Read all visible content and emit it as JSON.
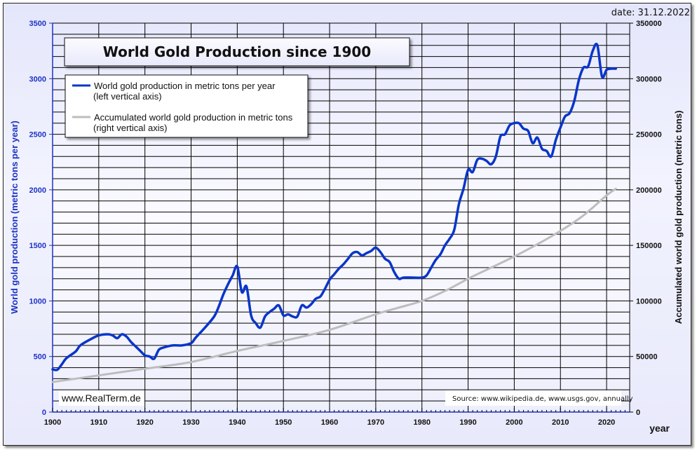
{
  "chart_data": {
    "type": "line",
    "title": "World Gold Production since 1900",
    "date_label": "date: 31.12.2022",
    "xlabel": "year",
    "ylabel_left": "World gold production  (metric tons per year)",
    "ylabel_right": "Accumulated world gold production (metric tons)",
    "xlim": [
      1900,
      2025
    ],
    "ylim_left": [
      0,
      3500
    ],
    "ylim_right": [
      0,
      350000
    ],
    "x_ticks": [
      "1900",
      "1910",
      "1920",
      "1930",
      "1940",
      "1950",
      "1960",
      "1970",
      "1980",
      "1990",
      "2000",
      "2010",
      "2020"
    ],
    "y_ticks_left": [
      "0",
      "500",
      "1000",
      "1500",
      "2000",
      "2500",
      "3000",
      "3500"
    ],
    "y_ticks_right": [
      "0",
      "50000",
      "100000",
      "150000",
      "200000",
      "250000",
      "300000",
      "350000"
    ],
    "grid": true,
    "legend_position": "top-left",
    "legend": [
      {
        "line1": "World gold production in metric tons per year",
        "line2": "(left vertical axis)",
        "color": "#0a35c8"
      },
      {
        "line1": "Accumulated world gold production in metric tons",
        "line2": "(right vertical axis)",
        "color": "#bdbdbd"
      }
    ],
    "series": [
      {
        "name": "World gold production in metric tons per year",
        "axis": "left",
        "color": "#0a35c8",
        "x": [
          1900,
          1901,
          1902,
          1903,
          1905,
          1906,
          1908,
          1910,
          1912,
          1913,
          1914,
          1915,
          1916,
          1917,
          1918,
          1919,
          1920,
          1921,
          1922,
          1923,
          1924,
          1926,
          1928,
          1930,
          1931,
          1933,
          1935,
          1936,
          1937,
          1938,
          1939,
          1940,
          1941,
          1942,
          1943,
          1944,
          1945,
          1946,
          1947,
          1948,
          1949,
          1950,
          1951,
          1952,
          1953,
          1954,
          1955,
          1956,
          1957,
          1958,
          1959,
          1960,
          1961,
          1962,
          1963,
          1964,
          1965,
          1966,
          1967,
          1968,
          1969,
          1970,
          1971,
          1972,
          1973,
          1974,
          1975,
          1976,
          1978,
          1980,
          1981,
          1982,
          1983,
          1984,
          1985,
          1986,
          1987,
          1988,
          1989,
          1990,
          1991,
          1992,
          1993,
          1994,
          1995,
          1996,
          1997,
          1998,
          1999,
          2000,
          2001,
          2002,
          2003,
          2004,
          2005,
          2006,
          2007,
          2008,
          2009,
          2010,
          2011,
          2012,
          2013,
          2014,
          2015,
          2016,
          2017,
          2018,
          2019,
          2020,
          2021,
          2022
        ],
        "values": [
          385,
          380,
          430,
          485,
          545,
          600,
          650,
          690,
          700,
          690,
          665,
          700,
          680,
          630,
          590,
          550,
          510,
          500,
          480,
          560,
          580,
          600,
          600,
          620,
          670,
          760,
          860,
          950,
          1060,
          1150,
          1230,
          1310,
          1080,
          1130,
          870,
          800,
          760,
          860,
          900,
          930,
          960,
          870,
          880,
          860,
          860,
          960,
          940,
          970,
          1020,
          1040,
          1110,
          1190,
          1240,
          1290,
          1330,
          1380,
          1430,
          1440,
          1410,
          1430,
          1450,
          1480,
          1440,
          1380,
          1350,
          1260,
          1200,
          1210,
          1210,
          1210,
          1230,
          1300,
          1370,
          1420,
          1500,
          1560,
          1640,
          1870,
          2010,
          2180,
          2160,
          2270,
          2280,
          2260,
          2230,
          2300,
          2480,
          2500,
          2580,
          2600,
          2600,
          2550,
          2530,
          2420,
          2470,
          2370,
          2350,
          2300,
          2450,
          2560,
          2660,
          2690,
          2800,
          2990,
          3100,
          3110,
          3250,
          3300,
          3020,
          3080,
          3090,
          3090
        ]
      },
      {
        "name": "Accumulated world gold production in metric tons",
        "axis": "right",
        "color": "#bdbdbd",
        "x": [
          1900,
          1910,
          1920,
          1930,
          1940,
          1950,
          1960,
          1970,
          1975,
          1980,
          1985,
          1990,
          1995,
          2000,
          2005,
          2010,
          2015,
          2020,
          2022
        ],
        "values": [
          27000,
          33000,
          39000,
          45000,
          55000,
          64000,
          74000,
          88000,
          94000,
          100000,
          109000,
          120000,
          130000,
          140000,
          151000,
          163000,
          177000,
          195000,
          201000
        ]
      }
    ]
  },
  "watermark": "www.RealTerm.de",
  "source": "Source: www.wikipedia.de, www.usgs.gov, annually"
}
